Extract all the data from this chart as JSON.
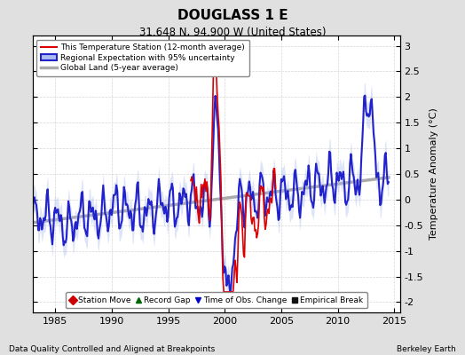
{
  "title": "DOUGLASS 1 E",
  "subtitle": "31.648 N, 94.900 W (United States)",
  "ylabel": "Temperature Anomaly (°C)",
  "footer_left": "Data Quality Controlled and Aligned at Breakpoints",
  "footer_right": "Berkeley Earth",
  "xlim": [
    1983.0,
    2015.5
  ],
  "ylim": [
    -2.2,
    3.2
  ],
  "yticks": [
    -2,
    -1.5,
    -1,
    -0.5,
    0,
    0.5,
    1,
    1.5,
    2,
    2.5,
    3
  ],
  "xticks": [
    1985,
    1990,
    1995,
    2000,
    2005,
    2010,
    2015
  ],
  "bg_color": "#e0e0e0",
  "plot_bg_color": "#ffffff",
  "grid_color": "#cccccc",
  "station_color": "#dd0000",
  "regional_color": "#2222cc",
  "regional_band_color": "#aabbee",
  "global_color": "#aaaaaa",
  "legend_items": [
    {
      "label": "This Temperature Station (12-month average)",
      "color": "#dd0000"
    },
    {
      "label": "Regional Expectation with 95% uncertainty",
      "color": "#2222cc"
    },
    {
      "label": "Global Land (5-year average)",
      "color": "#aaaaaa"
    }
  ],
  "marker_legend": [
    {
      "label": "Station Move",
      "color": "#cc0000",
      "marker": "D"
    },
    {
      "label": "Record Gap",
      "color": "#006600",
      "marker": "^"
    },
    {
      "label": "Time of Obs. Change",
      "color": "#0000cc",
      "marker": "v"
    },
    {
      "label": "Empirical Break",
      "color": "#111111",
      "marker": "s"
    }
  ]
}
